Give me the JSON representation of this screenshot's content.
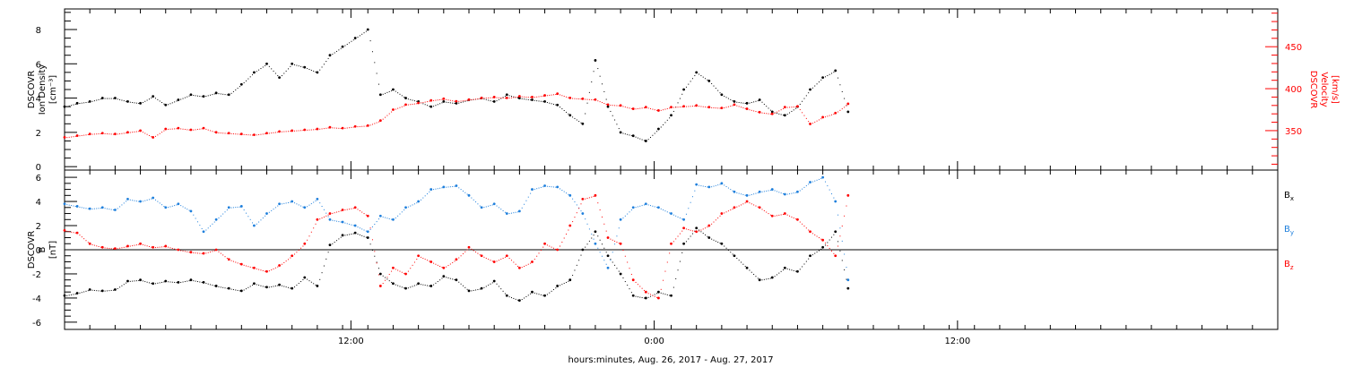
{
  "xaxis": {
    "label": "hours:minutes, Aug. 26, 2017 - Aug. 27, 2017",
    "range_hours": [
      0,
      48
    ],
    "tick_labels": [
      {
        "hour": 11.33,
        "label": "12:00"
      },
      {
        "hour": 23.33,
        "label": "0:00"
      },
      {
        "hour": 35.33,
        "label": "12:00"
      }
    ]
  },
  "colors": {
    "black": "#000000",
    "red": "#ff0000",
    "blue": "#1e7fdc"
  },
  "chart_data": [
    {
      "type": "scatter",
      "panel": "top",
      "ylabel_lines": [
        "DSCOVR",
        "Ion Density",
        "[cm⁻³]"
      ],
      "ylim": [
        -0.2,
        9.2
      ],
      "yticks": [
        0,
        2,
        4,
        6,
        8
      ],
      "y2label_lines": [
        "DSCOVR",
        "Velocity",
        "[km/s]"
      ],
      "y2lim": [
        303,
        495
      ],
      "y2ticks": [
        350,
        400,
        450
      ],
      "series": [
        {
          "color": "black",
          "axis": "left",
          "x": [
            0.0,
            0.5,
            1.0,
            1.5,
            2.0,
            2.5,
            3.0,
            3.5,
            4.0,
            4.5,
            5.0,
            5.5,
            6.0,
            6.5,
            7.0,
            7.5,
            8.0,
            8.5,
            9.0,
            9.5,
            10.0,
            10.5,
            11.0,
            11.5,
            12.0,
            12.5,
            13.0,
            13.5,
            14.0,
            14.5,
            15.0,
            15.5,
            16.0,
            16.5,
            17.0,
            17.5,
            18.0,
            18.5,
            19.0,
            19.5,
            20.0,
            20.5,
            21.0,
            21.5,
            22.0,
            22.5,
            23.0,
            23.5,
            24.0,
            24.5,
            25.0,
            25.5,
            26.0,
            26.5,
            27.0,
            27.5,
            28.0,
            28.5,
            29.0,
            29.5,
            30.0,
            30.5,
            31.0
          ],
          "y": [
            3.5,
            3.7,
            3.8,
            4.0,
            4.0,
            3.8,
            3.7,
            4.1,
            3.6,
            3.9,
            4.2,
            4.1,
            4.3,
            4.2,
            4.8,
            5.5,
            6.0,
            5.2,
            6.0,
            5.8,
            5.5,
            6.5,
            7.0,
            7.5,
            8.0,
            4.2,
            4.5,
            4.0,
            3.8,
            3.5,
            3.8,
            3.7,
            3.9,
            4.0,
            3.8,
            4.2,
            4.0,
            3.9,
            3.8,
            3.6,
            3.0,
            2.5,
            6.2,
            3.5,
            2.0,
            1.8,
            1.5,
            2.2,
            3.0,
            4.5,
            5.5,
            5.0,
            4.2,
            3.8,
            3.7,
            3.9,
            3.2,
            3.0,
            3.5,
            4.5,
            5.2,
            5.6,
            3.2
          ]
        },
        {
          "color": "red",
          "axis": "right",
          "x": [
            0.0,
            0.5,
            1.0,
            1.5,
            2.0,
            2.5,
            3.0,
            3.5,
            4.0,
            4.5,
            5.0,
            5.5,
            6.0,
            6.5,
            7.0,
            7.5,
            8.0,
            8.5,
            9.0,
            9.5,
            10.0,
            10.5,
            11.0,
            11.5,
            12.0,
            12.5,
            13.0,
            13.5,
            14.0,
            14.5,
            15.0,
            15.5,
            16.0,
            16.5,
            17.0,
            17.5,
            18.0,
            18.5,
            19.0,
            19.5,
            20.0,
            20.5,
            21.0,
            21.5,
            22.0,
            22.5,
            23.0,
            23.5,
            24.0,
            24.5,
            25.0,
            25.5,
            26.0,
            26.5,
            27.0,
            27.5,
            28.0,
            28.5,
            29.0,
            29.5,
            30.0,
            30.5,
            31.0
          ],
          "y": [
            342,
            344,
            346,
            347,
            346,
            348,
            350,
            342,
            352,
            353,
            351,
            353,
            348,
            347,
            346,
            345,
            347,
            349,
            350,
            351,
            352,
            354,
            353,
            355,
            356,
            362,
            375,
            381,
            383,
            386,
            388,
            385,
            387,
            389,
            390,
            389,
            391,
            390,
            392,
            394,
            389,
            388,
            387,
            381,
            380,
            376,
            378,
            374,
            378,
            379,
            380,
            378,
            377,
            381,
            376,
            372,
            370,
            378,
            379,
            358,
            366,
            371,
            382
          ]
        }
      ]
    },
    {
      "type": "scatter",
      "panel": "bottom",
      "ylabel_lines": [
        "DSCOVR",
        "B",
        "[nT]"
      ],
      "ylim": [
        -6.6,
        6.6
      ],
      "yticks": [
        -6,
        -4,
        -2,
        0,
        2,
        4,
        6
      ],
      "legend_placement": "right",
      "series": [
        {
          "name": "Bx",
          "color": "black",
          "x": [
            0.0,
            0.5,
            1.0,
            1.5,
            2.0,
            2.5,
            3.0,
            3.5,
            4.0,
            4.5,
            5.0,
            5.5,
            6.0,
            6.5,
            7.0,
            7.5,
            8.0,
            8.5,
            9.0,
            9.5,
            10.0,
            10.5,
            11.0,
            11.5,
            12.0,
            12.5,
            13.0,
            13.5,
            14.0,
            14.5,
            15.0,
            15.5,
            16.0,
            16.5,
            17.0,
            17.5,
            18.0,
            18.5,
            19.0,
            19.5,
            20.0,
            20.5,
            21.0,
            21.5,
            22.0,
            22.5,
            23.0,
            23.5,
            24.0,
            24.5,
            25.0,
            25.5,
            26.0,
            26.5,
            27.0,
            27.5,
            28.0,
            28.5,
            29.0,
            29.5,
            30.0,
            30.5,
            31.0
          ],
          "y": [
            -3.8,
            -3.6,
            -3.3,
            -3.4,
            -3.3,
            -2.6,
            -2.5,
            -2.8,
            -2.6,
            -2.7,
            -2.5,
            -2.7,
            -3.0,
            -3.2,
            -3.4,
            -2.8,
            -3.1,
            -2.9,
            -3.2,
            -2.3,
            -3.0,
            0.4,
            1.2,
            1.4,
            1.0,
            -2.0,
            -2.8,
            -3.2,
            -2.8,
            -3.0,
            -2.2,
            -2.5,
            -3.4,
            -3.2,
            -2.6,
            -3.8,
            -4.2,
            -3.5,
            -3.8,
            -3.0,
            -2.5,
            0.0,
            1.5,
            -0.5,
            -2.0,
            -3.8,
            -4.0,
            -3.5,
            -3.8,
            0.5,
            1.8,
            1.0,
            0.5,
            -0.5,
            -1.5,
            -2.5,
            -2.3,
            -1.5,
            -1.8,
            -0.5,
            0.2,
            1.5,
            -3.2
          ]
        },
        {
          "name": "By",
          "color": "blue",
          "x": [
            0.0,
            0.5,
            1.0,
            1.5,
            2.0,
            2.5,
            3.0,
            3.5,
            4.0,
            4.5,
            5.0,
            5.5,
            6.0,
            6.5,
            7.0,
            7.5,
            8.0,
            8.5,
            9.0,
            9.5,
            10.0,
            10.5,
            11.0,
            11.5,
            12.0,
            12.5,
            13.0,
            13.5,
            14.0,
            14.5,
            15.0,
            15.5,
            16.0,
            16.5,
            17.0,
            17.5,
            18.0,
            18.5,
            19.0,
            19.5,
            20.0,
            20.5,
            21.0,
            21.5,
            22.0,
            22.5,
            23.0,
            23.5,
            24.0,
            24.5,
            25.0,
            25.5,
            26.0,
            26.5,
            27.0,
            27.5,
            28.0,
            28.5,
            29.0,
            29.5,
            30.0,
            30.5,
            31.0
          ],
          "y": [
            3.8,
            3.6,
            3.4,
            3.5,
            3.3,
            4.2,
            4.0,
            4.3,
            3.5,
            3.8,
            3.2,
            1.5,
            2.5,
            3.5,
            3.6,
            2.0,
            3.0,
            3.8,
            4.0,
            3.5,
            4.2,
            2.5,
            2.3,
            2.0,
            1.5,
            2.8,
            2.5,
            3.5,
            4.0,
            5.0,
            5.2,
            5.3,
            4.5,
            3.5,
            3.8,
            3.0,
            3.2,
            5.0,
            5.3,
            5.2,
            4.5,
            3.0,
            0.5,
            -1.5,
            2.5,
            3.5,
            3.8,
            3.5,
            3.0,
            2.5,
            5.4,
            5.2,
            5.5,
            4.8,
            4.5,
            4.8,
            5.0,
            4.6,
            4.8,
            5.6,
            6.0,
            4.0,
            -2.5
          ]
        },
        {
          "name": "Bz",
          "color": "red",
          "x": [
            0.0,
            0.5,
            1.0,
            1.5,
            2.0,
            2.5,
            3.0,
            3.5,
            4.0,
            4.5,
            5.0,
            5.5,
            6.0,
            6.5,
            7.0,
            7.5,
            8.0,
            8.5,
            9.0,
            9.5,
            10.0,
            10.5,
            11.0,
            11.5,
            12.0,
            12.5,
            13.0,
            13.5,
            14.0,
            14.5,
            15.0,
            15.5,
            16.0,
            16.5,
            17.0,
            17.5,
            18.0,
            18.5,
            19.0,
            19.5,
            20.0,
            20.5,
            21.0,
            21.5,
            22.0,
            22.5,
            23.0,
            23.5,
            24.0,
            24.5,
            25.0,
            25.5,
            26.0,
            26.5,
            27.0,
            27.5,
            28.0,
            28.5,
            29.0,
            29.5,
            30.0,
            30.5,
            31.0
          ],
          "y": [
            1.6,
            1.4,
            0.5,
            0.2,
            0.1,
            0.3,
            0.5,
            0.2,
            0.3,
            0.0,
            -0.2,
            -0.3,
            0.0,
            -0.8,
            -1.2,
            -1.5,
            -1.8,
            -1.3,
            -0.5,
            0.5,
            2.5,
            3.0,
            3.3,
            3.5,
            2.8,
            -3.0,
            -1.5,
            -2.0,
            -0.5,
            -1.0,
            -1.5,
            -0.8,
            0.2,
            -0.5,
            -1.0,
            -0.5,
            -1.5,
            -1.0,
            0.5,
            0.0,
            2.0,
            4.2,
            4.5,
            1.0,
            0.5,
            -2.5,
            -3.5,
            -4.0,
            0.5,
            1.8,
            1.5,
            2.0,
            3.0,
            3.5,
            4.0,
            3.5,
            2.8,
            3.0,
            2.5,
            1.5,
            0.8,
            -0.5,
            4.5
          ]
        }
      ]
    }
  ]
}
